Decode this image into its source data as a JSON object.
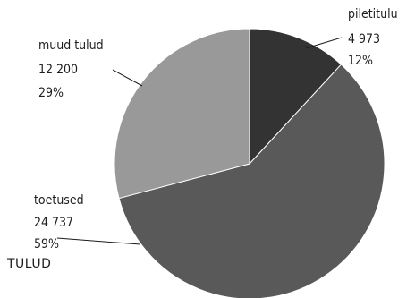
{
  "chart_data": {
    "type": "pie",
    "title": "TULUD",
    "slices": [
      {
        "label": "piletitulu",
        "value": 4973,
        "value_text": "4 973",
        "percent_text": "12%",
        "color": "#333333"
      },
      {
        "label": "toetused",
        "value": 24737,
        "value_text": "24 737",
        "percent_text": "59%",
        "color": "#595959"
      },
      {
        "label": "muud tulud",
        "value": 12200,
        "value_text": "12 200",
        "percent_text": "29%",
        "color": "#999999"
      }
    ],
    "start_angle": "12 o'clock",
    "direction": "clockwise",
    "legend": "none"
  }
}
